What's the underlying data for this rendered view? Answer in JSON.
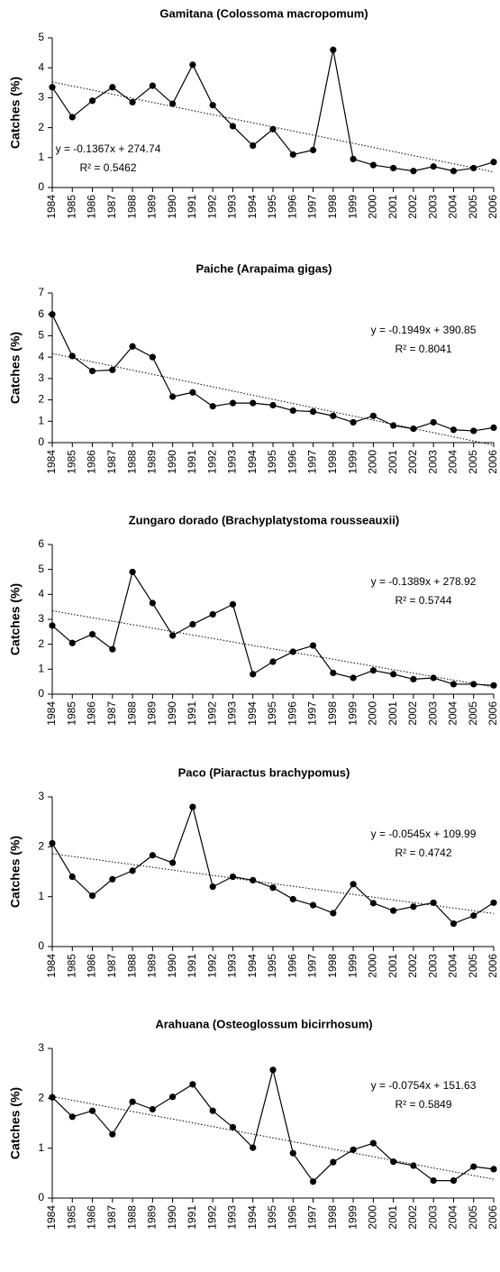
{
  "chart_data": [
    {
      "type": "line",
      "title": "Gamitana (Colossoma macropomum)",
      "ylabel": "Catches (%)",
      "color": "#000000",
      "x": [
        1984,
        1985,
        1986,
        1987,
        1988,
        1989,
        1990,
        1991,
        1992,
        1993,
        1994,
        1995,
        1996,
        1997,
        1998,
        1999,
        2000,
        2001,
        2002,
        2003,
        2004,
        2005,
        2006
      ],
      "values": [
        3.35,
        2.35,
        2.9,
        3.35,
        2.85,
        3.4,
        2.8,
        4.1,
        2.75,
        2.05,
        1.4,
        1.95,
        1.1,
        1.25,
        4.6,
        0.95,
        0.75,
        0.65,
        0.55,
        0.7,
        0.55,
        0.65,
        0.85
      ],
      "xlim": [
        1984,
        2006
      ],
      "xticks": [
        1984,
        1985,
        1986,
        1987,
        1988,
        1989,
        1990,
        1991,
        1992,
        1993,
        1994,
        1995,
        1996,
        1997,
        1998,
        1999,
        2000,
        2001,
        2002,
        2003,
        2004,
        2005,
        2006
      ],
      "ylim": [
        0,
        5
      ],
      "yticks": [
        0,
        1,
        2,
        3,
        4,
        5
      ],
      "trend": {
        "slope": -0.1367,
        "intercept": 274.74
      },
      "trend_label": "y = -0.1367x + 274.74",
      "r2_label": "R² = 0.5462",
      "annotation_position": "lower-left"
    },
    {
      "type": "line",
      "title": "Paiche (Arapaima gigas)",
      "ylabel": "Catches (%)",
      "color": "#000000",
      "x": [
        1984,
        1985,
        1986,
        1987,
        1988,
        1989,
        1990,
        1991,
        1992,
        1993,
        1994,
        1995,
        1996,
        1997,
        1998,
        1999,
        2000,
        2001,
        2002,
        2003,
        2004,
        2005,
        2006
      ],
      "values": [
        6.0,
        4.05,
        3.35,
        3.4,
        4.5,
        4.0,
        2.15,
        2.35,
        1.7,
        1.85,
        1.85,
        1.75,
        1.5,
        1.45,
        1.25,
        0.95,
        1.25,
        0.8,
        0.65,
        0.95,
        0.6,
        0.55,
        0.7
      ],
      "xlim": [
        1984,
        2006
      ],
      "xticks": [
        1984,
        1985,
        1986,
        1987,
        1988,
        1989,
        1990,
        1991,
        1992,
        1993,
        1994,
        1995,
        1996,
        1997,
        1998,
        1999,
        2000,
        2001,
        2002,
        2003,
        2004,
        2005,
        2006
      ],
      "ylim": [
        0,
        7
      ],
      "yticks": [
        0,
        1,
        2,
        3,
        4,
        5,
        6,
        7
      ],
      "trend": {
        "slope": -0.1949,
        "intercept": 390.85
      },
      "trend_label": "y = -0.1949x + 390.85",
      "r2_label": "R² = 0.8041",
      "annotation_position": "upper-right"
    },
    {
      "type": "line",
      "title": "Zungaro dorado (Brachyplatystoma rousseauxii)",
      "ylabel": "Catches (%)",
      "color": "#000000",
      "x": [
        1984,
        1985,
        1986,
        1987,
        1988,
        1989,
        1990,
        1991,
        1992,
        1993,
        1994,
        1995,
        1996,
        1997,
        1998,
        1999,
        2000,
        2001,
        2002,
        2003,
        2004,
        2005,
        2006
      ],
      "values": [
        2.75,
        2.05,
        2.4,
        1.8,
        4.9,
        3.65,
        2.35,
        2.8,
        3.2,
        3.6,
        0.8,
        1.3,
        1.7,
        1.95,
        0.85,
        0.65,
        0.95,
        0.8,
        0.6,
        0.65,
        0.4,
        0.4,
        0.35
      ],
      "xlim": [
        1984,
        2006
      ],
      "xticks": [
        1984,
        1985,
        1986,
        1987,
        1988,
        1989,
        1990,
        1991,
        1992,
        1993,
        1994,
        1995,
        1996,
        1997,
        1998,
        1999,
        2000,
        2001,
        2002,
        2003,
        2004,
        2005,
        2006
      ],
      "ylim": [
        0,
        6
      ],
      "yticks": [
        0,
        1,
        2,
        3,
        4,
        5,
        6
      ],
      "trend": {
        "slope": -0.1389,
        "intercept": 278.92
      },
      "trend_label": "y = -0.1389x + 278.92",
      "r2_label": "R² = 0.5744",
      "annotation_position": "upper-right"
    },
    {
      "type": "line",
      "title": "Paco (Piaractus brachypomus)",
      "ylabel": "Catches (%)",
      "color": "#000000",
      "x": [
        1984,
        1985,
        1986,
        1987,
        1988,
        1989,
        1990,
        1991,
        1992,
        1993,
        1994,
        1995,
        1996,
        1997,
        1998,
        1999,
        2000,
        2001,
        2002,
        2003,
        2004,
        2005,
        2006
      ],
      "values": [
        2.07,
        1.4,
        1.02,
        1.35,
        1.52,
        1.83,
        1.68,
        2.8,
        1.2,
        1.4,
        1.33,
        1.18,
        0.95,
        0.83,
        0.67,
        1.25,
        0.87,
        0.72,
        0.8,
        0.88,
        0.46,
        0.62,
        0.88
      ],
      "xlim": [
        1984,
        2006
      ],
      "xticks": [
        1984,
        1985,
        1986,
        1987,
        1988,
        1989,
        1990,
        1991,
        1992,
        1993,
        1994,
        1995,
        1996,
        1997,
        1998,
        1999,
        2000,
        2001,
        2002,
        2003,
        2004,
        2005,
        2006
      ],
      "ylim": [
        0,
        3
      ],
      "yticks": [
        0,
        1,
        2,
        3
      ],
      "trend": {
        "slope": -0.0545,
        "intercept": 109.99
      },
      "trend_label": "y = -0.0545x + 109.99",
      "r2_label": "R² = 0.4742",
      "annotation_position": "upper-right"
    },
    {
      "type": "line",
      "title": "Arahuana (Osteoglossum bicirrhosum)",
      "ylabel": "Catches (%)",
      "color": "#000000",
      "x": [
        1984,
        1985,
        1986,
        1987,
        1988,
        1989,
        1990,
        1991,
        1992,
        1993,
        1994,
        1995,
        1996,
        1997,
        1998,
        1999,
        2000,
        2001,
        2002,
        2003,
        2004,
        2005,
        2006
      ],
      "values": [
        2.02,
        1.63,
        1.75,
        1.28,
        1.93,
        1.78,
        2.03,
        2.28,
        1.75,
        1.42,
        1.01,
        2.57,
        0.9,
        0.33,
        0.72,
        0.97,
        1.1,
        0.73,
        0.65,
        0.35,
        0.35,
        0.63,
        0.58
      ],
      "xlim": [
        1984,
        2006
      ],
      "xticks": [
        1984,
        1985,
        1986,
        1987,
        1988,
        1989,
        1990,
        1991,
        1992,
        1993,
        1994,
        1995,
        1996,
        1997,
        1998,
        1999,
        2000,
        2001,
        2002,
        2003,
        2004,
        2005,
        2006
      ],
      "ylim": [
        0,
        3
      ],
      "yticks": [
        0,
        1,
        2,
        3
      ],
      "trend": {
        "slope": -0.0754,
        "intercept": 151.63
      },
      "trend_label": "y = -0.0754x + 151.63",
      "r2_label": "R² = 0.5849",
      "annotation_position": "upper-right"
    }
  ]
}
